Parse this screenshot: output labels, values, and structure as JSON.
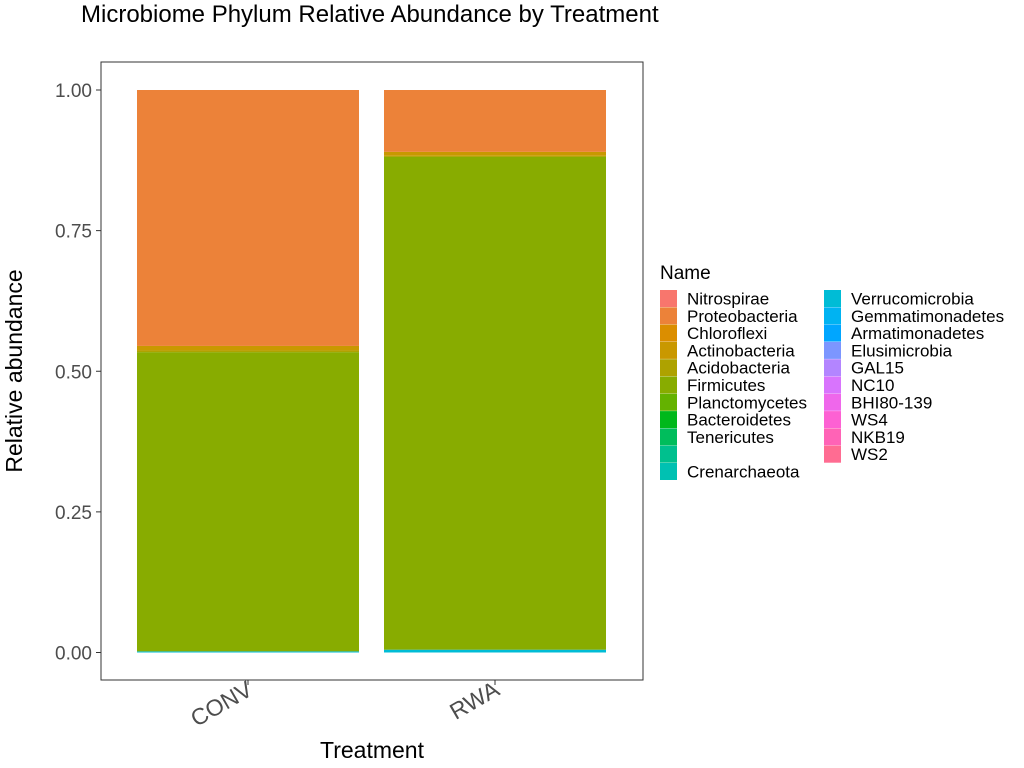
{
  "chart_data": {
    "type": "bar",
    "stacked": true,
    "title": "Microbiome Phylum Relative Abundance by Treatment",
    "xlabel": "Treatment",
    "ylabel": "Relative abundance",
    "categories": [
      "CONV",
      "RWA"
    ],
    "ylim": [
      0,
      1
    ],
    "yticks": [
      "0.00",
      "0.25",
      "0.50",
      "0.75",
      "1.00"
    ],
    "grid": false,
    "legend_title": "Name",
    "legend_position": "right",
    "series": [
      {
        "name": "Nitrospirae",
        "color": "#F8766D",
        "values": [
          0.0,
          0.0
        ]
      },
      {
        "name": "Proteobacteria",
        "color": "#EC8239",
        "values": [
          0.455,
          0.11
        ]
      },
      {
        "name": "Chloroflexi",
        "color": "#DB8E00",
        "values": [
          0.0,
          0.0
        ]
      },
      {
        "name": "Actinobacteria",
        "color": "#C99800",
        "values": [
          0.008,
          0.007
        ]
      },
      {
        "name": "Acidobacteria",
        "color": "#AEA200",
        "values": [
          0.003,
          0.002
        ]
      },
      {
        "name": "Firmicutes",
        "color": "#88AC00",
        "values": [
          0.532,
          0.876
        ]
      },
      {
        "name": "Planctomycetes",
        "color": "#64B200",
        "values": [
          0.0,
          0.0
        ]
      },
      {
        "name": "Bacteroidetes",
        "color": "#00B81B",
        "values": [
          0.0,
          0.0
        ]
      },
      {
        "name": "Tenericutes",
        "color": "#00BD5C",
        "values": [
          0.0,
          0.0
        ]
      },
      {
        "name": "",
        "color": "#00C08E",
        "values": [
          0.0,
          0.0
        ]
      },
      {
        "name": "Crenarchaeota",
        "color": "#00C1B2",
        "values": [
          0.0,
          0.0
        ]
      },
      {
        "name": "Verrucomicrobia",
        "color": "#00BCD6",
        "values": [
          0.002,
          0.005
        ]
      },
      {
        "name": "Gemmatimonadetes",
        "color": "#00B3F2",
        "values": [
          0.0,
          0.0
        ]
      },
      {
        "name": "Armatimonadetes",
        "color": "#00A6FF",
        "values": [
          0.0,
          0.0
        ]
      },
      {
        "name": "Elusimicrobia",
        "color": "#7C96FF",
        "values": [
          0.0,
          0.0
        ]
      },
      {
        "name": "GAL15",
        "color": "#B385FF",
        "values": [
          0.0,
          0.0
        ]
      },
      {
        "name": "NC10",
        "color": "#D874FD",
        "values": [
          0.0,
          0.0
        ]
      },
      {
        "name": "BHI80-139",
        "color": "#EF67EB",
        "values": [
          0.0,
          0.0
        ]
      },
      {
        "name": "WS4",
        "color": "#FD61D3",
        "values": [
          0.0,
          0.0
        ]
      },
      {
        "name": "NKB19",
        "color": "#FF63B6",
        "values": [
          0.0,
          0.0
        ]
      },
      {
        "name": "WS2",
        "color": "#FF6C92",
        "values": [
          0.0,
          0.0
        ]
      }
    ]
  }
}
